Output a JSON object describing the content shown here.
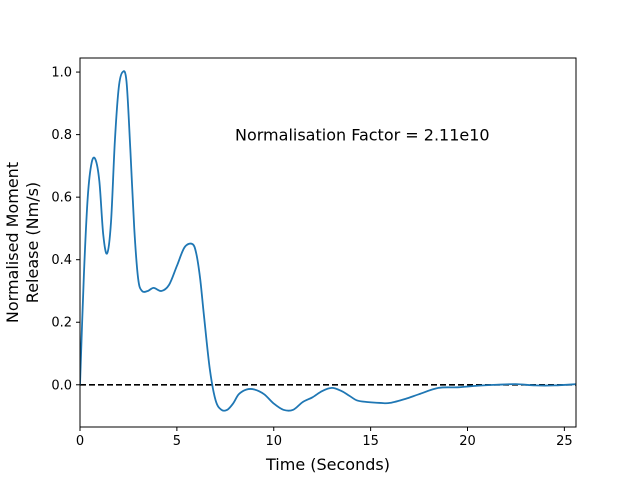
{
  "chart_data": {
    "type": "line",
    "xlabel": "Time (Seconds)",
    "ylabel_lines": [
      "Normalised Moment",
      "Release (Nm/s)"
    ],
    "xlim": [
      0,
      25.6
    ],
    "ylim": [
      -0.135,
      1.045
    ],
    "xticks": [
      0,
      5,
      10,
      15,
      20,
      25
    ],
    "yticks": [
      0.0,
      0.2,
      0.4,
      0.6,
      0.8,
      1.0
    ],
    "ytick_labels": [
      "0.0",
      "0.2",
      "0.4",
      "0.6",
      "0.8",
      "1.0"
    ],
    "grid": false,
    "annotation": {
      "text": "Normalisation Factor = 2.11e10",
      "x": 8.0,
      "y": 0.8
    },
    "reference_line": {
      "y": 0.0,
      "style": "dashed",
      "color": "#000000"
    },
    "series": [
      {
        "color": "#1f77b4",
        "x": [
          0,
          0.2,
          0.4,
          0.6,
          0.8,
          1.0,
          1.2,
          1.4,
          1.6,
          1.8,
          2.0,
          2.2,
          2.4,
          2.6,
          2.8,
          3.0,
          3.2,
          3.5,
          3.8,
          4.2,
          4.6,
          5.0,
          5.4,
          5.8,
          6.0,
          6.2,
          6.4,
          6.7,
          7.0,
          7.3,
          7.6,
          7.9,
          8.2,
          8.6,
          9.0,
          9.5,
          10.0,
          10.5,
          11.0,
          11.5,
          12.0,
          12.5,
          13.0,
          13.5,
          13.9,
          14.3,
          14.8,
          15.5,
          16.0,
          16.8,
          17.5,
          18.5,
          19.5,
          20.5,
          21.5,
          22.5,
          23.5,
          24.5,
          25.6
        ],
        "y": [
          0.0,
          0.35,
          0.6,
          0.71,
          0.72,
          0.65,
          0.48,
          0.42,
          0.52,
          0.78,
          0.95,
          1.0,
          0.97,
          0.75,
          0.5,
          0.34,
          0.3,
          0.3,
          0.31,
          0.3,
          0.32,
          0.38,
          0.44,
          0.45,
          0.42,
          0.34,
          0.22,
          0.05,
          -0.05,
          -0.08,
          -0.08,
          -0.06,
          -0.03,
          -0.015,
          -0.015,
          -0.03,
          -0.06,
          -0.08,
          -0.08,
          -0.055,
          -0.04,
          -0.02,
          -0.01,
          -0.02,
          -0.035,
          -0.05,
          -0.055,
          -0.058,
          -0.058,
          -0.045,
          -0.03,
          -0.01,
          -0.008,
          -0.003,
          0.0,
          0.002,
          -0.002,
          -0.002,
          0.002
        ]
      }
    ]
  }
}
